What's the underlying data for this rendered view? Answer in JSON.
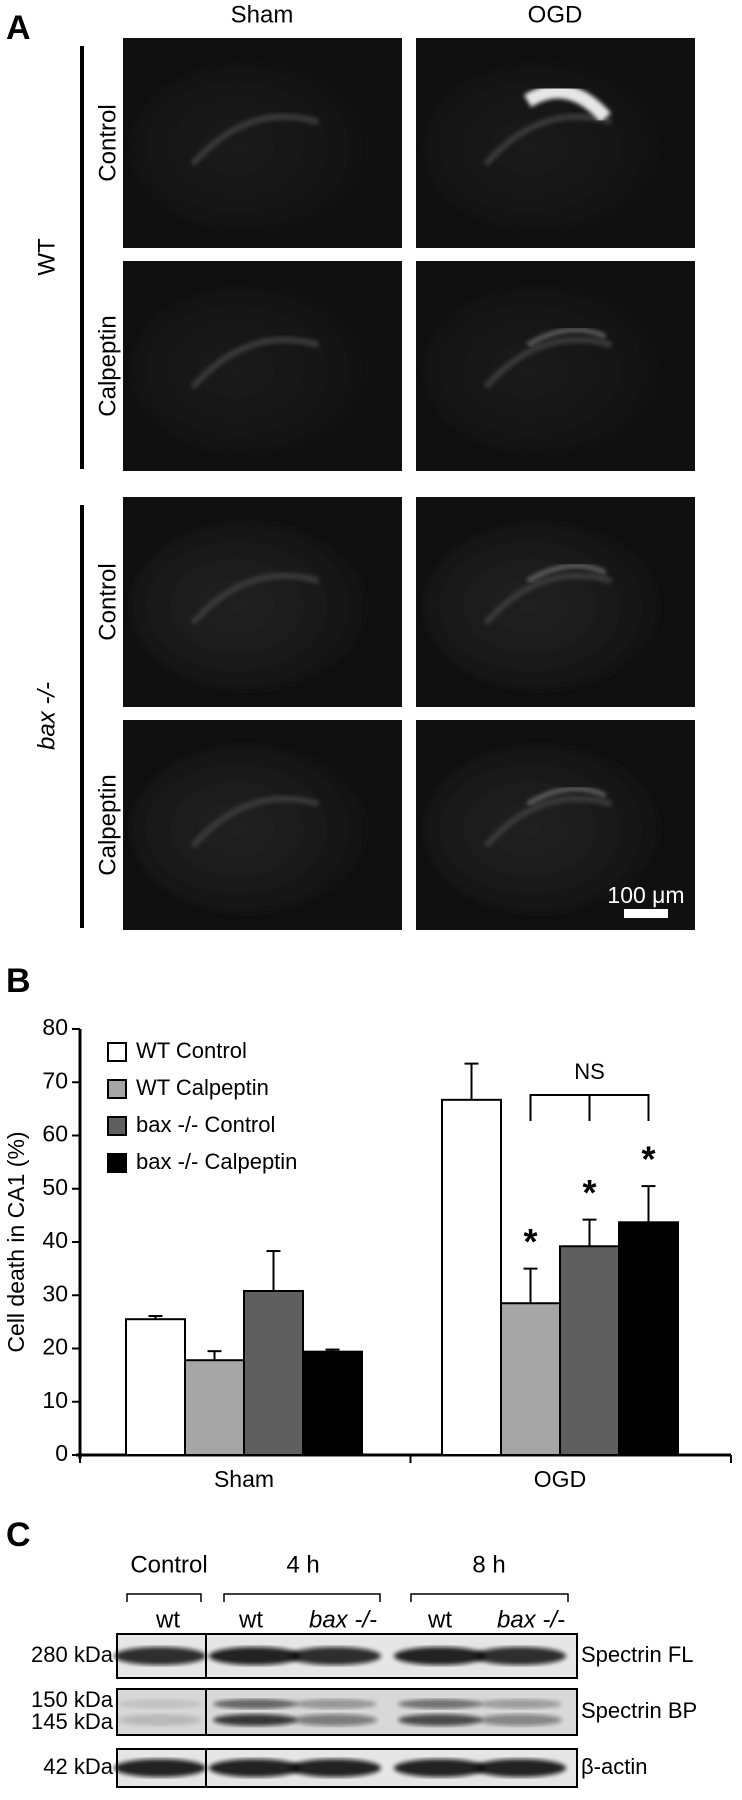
{
  "panel_a": {
    "label": "A",
    "columns": [
      "Sham",
      "OGD"
    ],
    "groups": [
      {
        "name": "WT",
        "rows": [
          "Control",
          "Calpeptin"
        ]
      },
      {
        "name": "bax -/-",
        "rows": [
          "Control",
          "Calpeptin"
        ]
      }
    ],
    "scale_bar": "100 μm"
  },
  "panel_b_label": "B",
  "chart_data": {
    "type": "bar",
    "ylabel": "Cell death in CA1 (%)",
    "categories": [
      "Sham",
      "OGD"
    ],
    "series": [
      {
        "name": "WT Control",
        "color": "#ffffff",
        "values": [
          25.5,
          66.7
        ],
        "errors": [
          0.6,
          6.8
        ],
        "significance": [
          null,
          null
        ]
      },
      {
        "name": "WT Calpeptin",
        "color": "#a6a6a6",
        "values": [
          17.8,
          28.5
        ],
        "errors": [
          1.7,
          6.5
        ],
        "significance": [
          null,
          "*"
        ]
      },
      {
        "name": "bax -/- Control",
        "color": "#5f5f5f",
        "values": [
          30.8,
          39.2
        ],
        "errors": [
          7.5,
          5.0
        ],
        "significance": [
          null,
          "*"
        ]
      },
      {
        "name": "bax -/- Calpeptin",
        "color": "#000000",
        "values": [
          19.4,
          43.7
        ],
        "errors": [
          0.4,
          6.8
        ],
        "significance": [
          null,
          "*"
        ]
      }
    ],
    "bracket_label": "NS",
    "ylim": [
      0,
      80
    ],
    "yticks": [
      0,
      10,
      20,
      30,
      40,
      50,
      60,
      70,
      80
    ],
    "legend": "upper left"
  },
  "panel_c": {
    "label": "C",
    "timepoints": [
      "Control",
      "4 h",
      "8 h"
    ],
    "lanes": [
      "wt",
      "wt",
      "bax -/-",
      "wt",
      "bax -/-"
    ],
    "blots": [
      {
        "markers": [
          "280 kDa"
        ],
        "name": "Spectrin FL"
      },
      {
        "markers": [
          "150 kDa",
          "145 kDa"
        ],
        "name": "Spectrin BP"
      },
      {
        "markers": [
          "42 kDa"
        ],
        "name": "β-actin"
      }
    ]
  }
}
